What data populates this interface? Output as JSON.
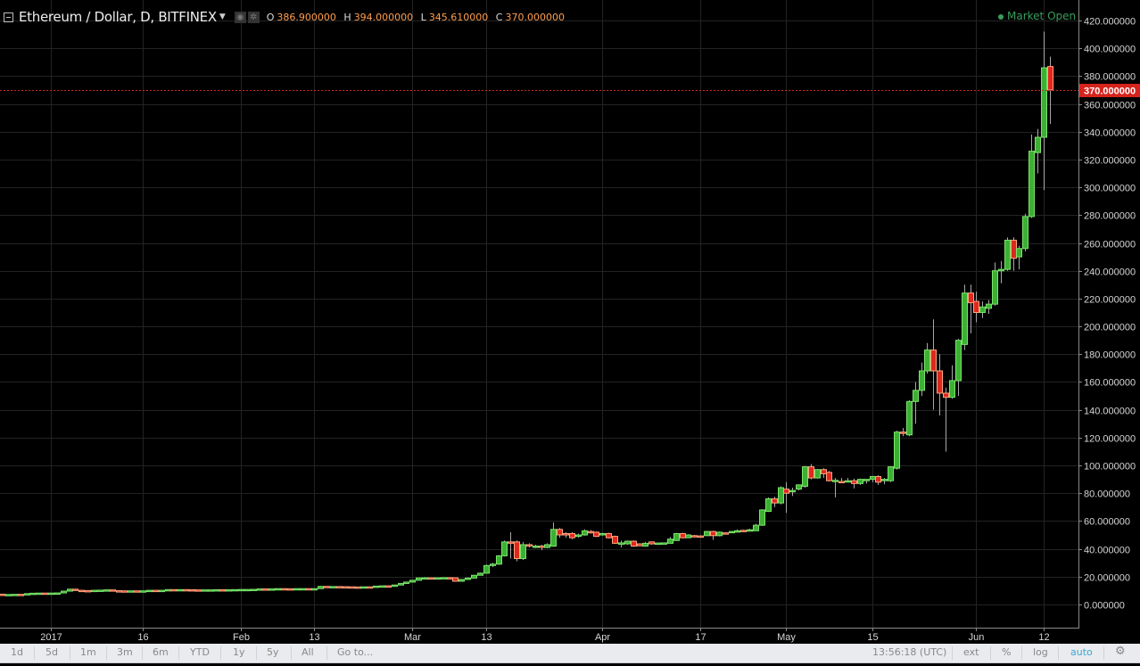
{
  "header": {
    "title": "Ethereum / Dollar, D, BITFINEX",
    "ohlc": [
      {
        "label": "O",
        "value": "386.900000"
      },
      {
        "label": "H",
        "value": "394.000000"
      },
      {
        "label": "L",
        "value": "345.610000"
      },
      {
        "label": "C",
        "value": "370.000000"
      }
    ],
    "market_status": "Market Open"
  },
  "colors": {
    "up": "#3cb034",
    "down": "#e0271f",
    "grid": "#232323",
    "last_price": "#d6231d",
    "market_open": "#3a9d5d",
    "auto_active": "#3ea6d8"
  },
  "toolbar": {
    "ranges": [
      "1d",
      "5d",
      "1m",
      "3m",
      "6m",
      "YTD",
      "1y",
      "5y",
      "All"
    ],
    "goto": "Go to...",
    "time": "13:56:18 (UTC)",
    "ext": "ext",
    "percent": "%",
    "log": "log",
    "auto": "auto"
  },
  "chart_data": {
    "type": "candlestick",
    "interval": "D",
    "last_price_label": "370.000000",
    "ylim": [
      -15,
      440
    ],
    "y_ticks": [
      "0.000000",
      "20.000000",
      "40.000000",
      "60.000000",
      "80.000000",
      "100.000000",
      "120.000000",
      "140.000000",
      "160.000000",
      "180.000000",
      "200.000000",
      "220.000000",
      "240.000000",
      "260.000000",
      "280.000000",
      "300.000000",
      "320.000000",
      "340.000000",
      "360.000000",
      "380.000000",
      "400.000000",
      "420.000000"
    ],
    "x_ticks": [
      {
        "date": "2017-01-01",
        "label": "2017"
      },
      {
        "date": "2017-01-16",
        "label": "16"
      },
      {
        "date": "2017-02-01",
        "label": "Feb"
      },
      {
        "date": "2017-02-13",
        "label": "13"
      },
      {
        "date": "2017-03-01",
        "label": "Mar"
      },
      {
        "date": "2017-03-13",
        "label": "13"
      },
      {
        "date": "2017-04-01",
        "label": "Apr"
      },
      {
        "date": "2017-04-17",
        "label": "17"
      },
      {
        "date": "2017-05-01",
        "label": "May"
      },
      {
        "date": "2017-05-15",
        "label": "15"
      },
      {
        "date": "2017-06-01",
        "label": "Jun"
      },
      {
        "date": "2017-06-12",
        "label": "12"
      }
    ],
    "grid": true,
    "columns": [
      "date",
      "open",
      "high",
      "low",
      "close"
    ],
    "candles": [
      [
        "2016-12-23",
        7.3,
        7.5,
        7.1,
        7.4
      ],
      [
        "2016-12-24",
        7.4,
        7.4,
        7.1,
        7.2
      ],
      [
        "2016-12-25",
        7.2,
        7.3,
        7.0,
        7.2
      ],
      [
        "2016-12-26",
        7.2,
        7.3,
        7.1,
        7.3
      ],
      [
        "2016-12-27",
        7.3,
        7.4,
        7.1,
        7.2
      ],
      [
        "2016-12-28",
        7.2,
        7.9,
        7.2,
        7.8
      ],
      [
        "2016-12-29",
        7.8,
        8.3,
        7.8,
        8.1
      ],
      [
        "2016-12-30",
        8.1,
        8.3,
        7.9,
        8.2
      ],
      [
        "2016-12-31",
        8.2,
        8.2,
        7.9,
        8.0
      ],
      [
        "2017-01-01",
        8.0,
        8.3,
        7.9,
        8.2
      ],
      [
        "2017-01-02",
        8.2,
        8.4,
        8.0,
        8.3
      ],
      [
        "2017-01-03",
        8.3,
        9.7,
        8.3,
        9.6
      ],
      [
        "2017-01-04",
        9.6,
        11.3,
        9.5,
        11.0
      ],
      [
        "2017-01-05",
        11.0,
        11.3,
        9.8,
        10.2
      ],
      [
        "2017-01-06",
        10.2,
        10.4,
        9.6,
        10.0
      ],
      [
        "2017-01-07",
        10.0,
        10.3,
        9.7,
        9.9
      ],
      [
        "2017-01-08",
        9.9,
        10.4,
        9.8,
        10.2
      ],
      [
        "2017-01-09",
        10.2,
        10.5,
        10.0,
        10.3
      ],
      [
        "2017-01-10",
        10.3,
        10.6,
        10.2,
        10.5
      ],
      [
        "2017-01-11",
        10.5,
        10.6,
        9.8,
        9.9
      ],
      [
        "2017-01-12",
        9.9,
        10.0,
        9.5,
        9.8
      ],
      [
        "2017-01-13",
        9.8,
        9.9,
        9.6,
        9.7
      ],
      [
        "2017-01-14",
        9.7,
        9.9,
        9.6,
        9.8
      ],
      [
        "2017-01-15",
        9.8,
        9.9,
        9.6,
        9.7
      ],
      [
        "2017-01-16",
        9.7,
        9.9,
        9.6,
        9.8
      ],
      [
        "2017-01-17",
        9.8,
        10.3,
        9.7,
        10.2
      ],
      [
        "2017-01-18",
        10.2,
        10.4,
        9.9,
        10.0
      ],
      [
        "2017-01-19",
        10.0,
        10.3,
        9.9,
        10.2
      ],
      [
        "2017-01-20",
        10.2,
        10.8,
        10.1,
        10.7
      ],
      [
        "2017-01-21",
        10.7,
        10.9,
        10.4,
        10.6
      ],
      [
        "2017-01-22",
        10.6,
        10.8,
        10.4,
        10.7
      ],
      [
        "2017-01-23",
        10.7,
        10.8,
        10.5,
        10.6
      ],
      [
        "2017-01-24",
        10.6,
        10.7,
        10.4,
        10.5
      ],
      [
        "2017-01-25",
        10.5,
        10.6,
        10.3,
        10.4
      ],
      [
        "2017-01-26",
        10.4,
        10.6,
        10.3,
        10.5
      ],
      [
        "2017-01-27",
        10.5,
        10.6,
        10.4,
        10.5
      ],
      [
        "2017-01-28",
        10.5,
        10.6,
        10.4,
        10.6
      ],
      [
        "2017-01-29",
        10.6,
        10.6,
        10.4,
        10.5
      ],
      [
        "2017-01-30",
        10.5,
        10.7,
        10.4,
        10.6
      ],
      [
        "2017-01-31",
        10.6,
        10.8,
        10.5,
        10.7
      ],
      [
        "2017-02-01",
        10.7,
        10.9,
        10.6,
        10.8
      ],
      [
        "2017-02-02",
        10.8,
        11.0,
        10.7,
        10.8
      ],
      [
        "2017-02-03",
        10.8,
        11.0,
        10.7,
        10.9
      ],
      [
        "2017-02-04",
        10.9,
        11.3,
        10.8,
        11.2
      ],
      [
        "2017-02-05",
        11.2,
        11.3,
        11.0,
        11.1
      ],
      [
        "2017-02-06",
        11.1,
        11.3,
        11.0,
        11.2
      ],
      [
        "2017-02-07",
        11.2,
        11.5,
        11.1,
        11.4
      ],
      [
        "2017-02-08",
        11.4,
        11.5,
        11.2,
        11.3
      ],
      [
        "2017-02-09",
        11.3,
        11.4,
        10.8,
        11.0
      ],
      [
        "2017-02-10",
        11.0,
        11.5,
        11.0,
        11.4
      ],
      [
        "2017-02-11",
        11.4,
        11.5,
        11.3,
        11.4
      ],
      [
        "2017-02-12",
        11.4,
        11.5,
        11.2,
        11.3
      ],
      [
        "2017-02-13",
        11.3,
        11.5,
        11.2,
        11.4
      ],
      [
        "2017-02-14",
        11.4,
        13.2,
        11.4,
        13.0
      ],
      [
        "2017-02-15",
        13.0,
        13.2,
        12.8,
        12.9
      ],
      [
        "2017-02-16",
        12.9,
        13.1,
        12.7,
        12.9
      ],
      [
        "2017-02-17",
        12.9,
        13.0,
        12.6,
        12.8
      ],
      [
        "2017-02-18",
        12.8,
        12.9,
        12.6,
        12.7
      ],
      [
        "2017-02-19",
        12.7,
        12.8,
        12.5,
        12.6
      ],
      [
        "2017-02-20",
        12.6,
        12.7,
        12.3,
        12.4
      ],
      [
        "2017-02-21",
        12.4,
        12.8,
        12.3,
        12.7
      ],
      [
        "2017-02-22",
        12.7,
        12.9,
        12.5,
        12.6
      ],
      [
        "2017-02-23",
        12.6,
        13.3,
        12.6,
        13.2
      ],
      [
        "2017-02-24",
        13.2,
        13.5,
        12.9,
        13.4
      ],
      [
        "2017-02-25",
        13.4,
        13.6,
        13.0,
        13.1
      ],
      [
        "2017-02-26",
        13.1,
        14.2,
        13.0,
        14.0
      ],
      [
        "2017-02-27",
        14.0,
        15.2,
        14.0,
        15.1
      ],
      [
        "2017-02-28",
        15.1,
        16.3,
        15.0,
        16.1
      ],
      [
        "2017-03-01",
        16.1,
        17.6,
        16.0,
        17.4
      ],
      [
        "2017-03-02",
        17.4,
        19.3,
        17.3,
        19.1
      ],
      [
        "2017-03-03",
        19.1,
        19.8,
        18.7,
        19.2
      ],
      [
        "2017-03-04",
        19.2,
        19.5,
        18.6,
        18.9
      ],
      [
        "2017-03-05",
        18.9,
        19.4,
        18.8,
        19.2
      ],
      [
        "2017-03-06",
        19.2,
        19.7,
        19.0,
        19.3
      ],
      [
        "2017-03-07",
        19.3,
        19.6,
        19.0,
        19.2
      ],
      [
        "2017-03-08",
        19.2,
        19.3,
        16.5,
        16.7
      ],
      [
        "2017-03-09",
        16.7,
        18.3,
        16.5,
        18.0
      ],
      [
        "2017-03-10",
        18.0,
        19.4,
        17.9,
        19.0
      ],
      [
        "2017-03-11",
        19.0,
        21.3,
        18.9,
        21.0
      ],
      [
        "2017-03-12",
        21.0,
        23.0,
        20.8,
        22.5
      ],
      [
        "2017-03-13",
        22.5,
        28.8,
        22.3,
        28.0
      ],
      [
        "2017-03-14",
        28.0,
        30.0,
        27.0,
        29.0
      ],
      [
        "2017-03-15",
        29.0,
        35.5,
        28.5,
        35.0
      ],
      [
        "2017-03-16",
        35.0,
        46.0,
        34.5,
        45.0
      ],
      [
        "2017-03-17",
        45.0,
        52.0,
        33.0,
        44.5
      ],
      [
        "2017-03-18",
        45.0,
        46.0,
        31.0,
        33.0
      ],
      [
        "2017-03-19",
        33.0,
        45.0,
        32.0,
        43.0
      ],
      [
        "2017-03-20",
        43.0,
        44.0,
        41.0,
        42.5
      ],
      [
        "2017-03-21",
        41.0,
        43.0,
        40.5,
        42.0
      ],
      [
        "2017-03-22",
        42.0,
        43.0,
        39.0,
        41.0
      ],
      [
        "2017-03-23",
        41.0,
        44.0,
        40.5,
        43.0
      ],
      [
        "2017-03-24",
        42.0,
        59.0,
        41.5,
        54.0
      ],
      [
        "2017-03-25",
        54.0,
        55.0,
        48.0,
        50.0
      ],
      [
        "2017-03-26",
        51.0,
        52.0,
        48.0,
        50.0
      ],
      [
        "2017-03-27",
        51.0,
        52.0,
        47.0,
        48.0
      ],
      [
        "2017-03-28",
        49.0,
        51.0,
        48.0,
        50.0
      ],
      [
        "2017-03-29",
        50.0,
        54.0,
        49.5,
        53.0
      ],
      [
        "2017-03-30",
        52.5,
        53.5,
        51.0,
        51.5
      ],
      [
        "2017-03-31",
        52.0,
        52.5,
        48.5,
        49.0
      ],
      [
        "2017-04-01",
        50.0,
        51.5,
        49.5,
        51.0
      ],
      [
        "2017-04-02",
        51.0,
        51.5,
        47.5,
        48.0
      ],
      [
        "2017-04-03",
        49.0,
        49.5,
        43.5,
        44.0
      ],
      [
        "2017-04-04",
        44.0,
        46.0,
        41.0,
        44.3
      ],
      [
        "2017-04-05",
        43.6,
        46.0,
        43.0,
        45.5
      ],
      [
        "2017-04-06",
        45.5,
        46.0,
        41.5,
        42.0
      ],
      [
        "2017-04-07",
        43.6,
        44.0,
        42.0,
        42.2
      ],
      [
        "2017-04-08",
        42.0,
        45.0,
        41.5,
        44.0
      ],
      [
        "2017-04-09",
        45.0,
        45.3,
        43.0,
        43.6
      ],
      [
        "2017-04-10",
        43.8,
        44.6,
        43.4,
        44.2
      ],
      [
        "2017-04-11",
        44.0,
        44.5,
        43.5,
        44.3
      ],
      [
        "2017-04-12",
        44.0,
        48.5,
        44.0,
        47.0
      ],
      [
        "2017-04-13",
        46.0,
        51.5,
        46.0,
        51.0
      ],
      [
        "2017-04-14",
        51.0,
        51.5,
        47.5,
        48.0
      ],
      [
        "2017-04-15",
        48.0,
        50.5,
        47.8,
        50.0
      ],
      [
        "2017-04-16",
        49.5,
        50.0,
        48.8,
        49.0
      ],
      [
        "2017-04-17",
        49.3,
        49.8,
        48.8,
        49.0
      ],
      [
        "2017-04-18",
        49.5,
        53.0,
        49.3,
        52.5
      ],
      [
        "2017-04-19",
        52.5,
        53.0,
        46.5,
        49.5
      ],
      [
        "2017-04-20",
        49.5,
        52.5,
        49.0,
        52.0
      ],
      [
        "2017-04-21",
        51.5,
        52.0,
        51.0,
        51.0
      ],
      [
        "2017-04-22",
        52.0,
        52.8,
        51.8,
        52.5
      ],
      [
        "2017-04-23",
        52.5,
        54.0,
        52.3,
        53.0
      ],
      [
        "2017-04-24",
        53.3,
        53.8,
        52.8,
        53.0
      ],
      [
        "2017-04-25",
        53.2,
        54.5,
        53.0,
        53.7
      ],
      [
        "2017-04-26",
        53.0,
        58.0,
        52.8,
        57.0
      ],
      [
        "2017-04-27",
        57.0,
        68.5,
        56.5,
        68.0
      ],
      [
        "2017-04-28",
        67.0,
        77.0,
        66.5,
        76.0
      ],
      [
        "2017-04-29",
        76.0,
        77.5,
        70.0,
        73.0
      ],
      [
        "2017-04-30",
        73.0,
        85.0,
        72.0,
        84.0
      ],
      [
        "2017-05-01",
        83.0,
        88.0,
        66.0,
        80.0
      ],
      [
        "2017-05-02",
        81.0,
        84.0,
        78.0,
        82.0
      ],
      [
        "2017-05-03",
        83.0,
        86.5,
        82.0,
        86.0
      ],
      [
        "2017-05-04",
        85.0,
        99.5,
        84.0,
        99.0
      ],
      [
        "2017-05-05",
        99.0,
        101.0,
        90.0,
        91.0
      ],
      [
        "2017-05-06",
        91.0,
        97.5,
        90.5,
        97.0
      ],
      [
        "2017-05-07",
        97.0,
        98.0,
        91.0,
        94.0
      ],
      [
        "2017-05-08",
        95.0,
        96.0,
        88.5,
        89.0
      ],
      [
        "2017-05-09",
        89.0,
        91.0,
        77.0,
        89.3
      ],
      [
        "2017-05-10",
        88.5,
        91.0,
        87.8,
        88.0
      ],
      [
        "2017-05-11",
        88.5,
        91.0,
        88.0,
        89.0
      ],
      [
        "2017-05-12",
        89.0,
        90.5,
        83.5,
        87.0
      ],
      [
        "2017-05-13",
        87.0,
        90.5,
        86.0,
        90.0
      ],
      [
        "2017-05-14",
        89.0,
        90.0,
        87.0,
        90.0
      ],
      [
        "2017-05-15",
        90.0,
        92.5,
        88.0,
        92.0
      ],
      [
        "2017-05-16",
        92.0,
        93.0,
        86.0,
        88.0
      ],
      [
        "2017-05-17",
        89.0,
        91.0,
        86.5,
        90.0
      ],
      [
        "2017-05-18",
        89.0,
        99.5,
        88.0,
        99.0
      ],
      [
        "2017-05-19",
        98.0,
        125.0,
        97.0,
        124.0
      ],
      [
        "2017-05-20",
        124.0,
        127.0,
        121.0,
        123.0
      ],
      [
        "2017-05-21",
        122.0,
        147.0,
        121.0,
        146.0
      ],
      [
        "2017-05-22",
        146.0,
        160.0,
        130.0,
        154.0
      ],
      [
        "2017-05-23",
        154.0,
        174.0,
        150.0,
        168.0
      ],
      [
        "2017-05-24",
        168.0,
        188.0,
        166.0,
        183.0
      ],
      [
        "2017-05-25",
        183.0,
        205.0,
        140.0,
        168.0
      ],
      [
        "2017-05-26",
        168.0,
        180.0,
        136.0,
        152.0
      ],
      [
        "2017-05-27",
        152.0,
        156.0,
        110.0,
        149.0
      ],
      [
        "2017-05-28",
        149.0,
        172.0,
        148.0,
        161.0
      ],
      [
        "2017-05-29",
        161.0,
        191.0,
        150.0,
        190.0
      ],
      [
        "2017-05-30",
        187.0,
        230.0,
        183.0,
        224.0
      ],
      [
        "2017-05-31",
        224.0,
        230.0,
        195.0,
        217.0
      ],
      [
        "2017-06-01",
        218.0,
        225.0,
        203.0,
        210.0
      ],
      [
        "2017-06-02",
        210.0,
        218.0,
        206.0,
        214.0
      ],
      [
        "2017-06-03",
        213.0,
        219.0,
        209.0,
        216.0
      ],
      [
        "2017-06-04",
        216.0,
        246.0,
        215.0,
        240.0
      ],
      [
        "2017-06-05",
        240.0,
        247.0,
        231.0,
        241.0
      ],
      [
        "2017-06-06",
        241.0,
        264.0,
        240.0,
        262.0
      ],
      [
        "2017-06-07",
        262.0,
        264.0,
        240.0,
        249.0
      ],
      [
        "2017-06-08",
        250.0,
        258.0,
        241.0,
        256.0
      ],
      [
        "2017-06-09",
        256.0,
        281.0,
        254.0,
        279.0
      ],
      [
        "2017-06-10",
        279.0,
        338.0,
        278.0,
        326.0
      ],
      [
        "2017-06-11",
        325.0,
        342.0,
        310.0,
        336.0
      ],
      [
        "2017-06-12",
        336.0,
        412.0,
        298.0,
        386.0
      ],
      [
        "2017-06-13",
        386.9,
        394.0,
        345.61,
        370.0
      ]
    ]
  }
}
